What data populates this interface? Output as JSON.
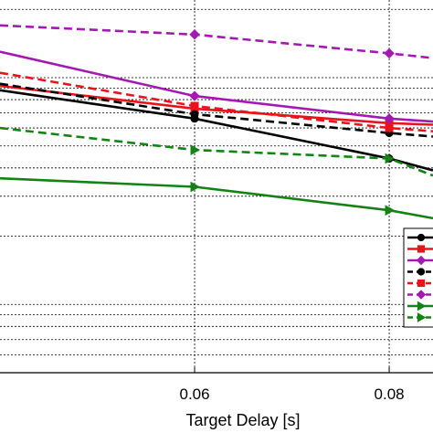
{
  "chart_data": {
    "type": "line",
    "xlabel": "Target Delay [s]",
    "ylabel": "",
    "title": "",
    "x_ticks": [
      0.06,
      0.08
    ],
    "xlim": [
      0.04,
      0.0845
    ],
    "y_scale": "log",
    "ylim": [
      0.05,
      2.2
    ],
    "grid": "major-and-minor",
    "legend_placement": "lower-right",
    "series": [
      {
        "color": "#000000",
        "dash": "solid",
        "marker": "circle",
        "x": [
          0.04,
          0.06,
          0.08,
          0.0845
        ],
        "y": [
          0.88,
          0.66,
          0.44,
          0.39
        ]
      },
      {
        "color": "#e8141c",
        "dash": "solid",
        "marker": "square",
        "x": [
          0.04,
          0.06,
          0.08,
          0.0845
        ],
        "y": [
          0.92,
          0.73,
          0.63,
          0.62
        ]
      },
      {
        "color": "#a21aaf",
        "dash": "solid",
        "marker": "diamond",
        "x": [
          0.04,
          0.06,
          0.08,
          0.0845
        ],
        "y": [
          1.3,
          0.83,
          0.66,
          0.64
        ]
      },
      {
        "color": "#000000",
        "dash": "dashed",
        "marker": "circle",
        "x": [
          0.04,
          0.06,
          0.08,
          0.0845
        ],
        "y": [
          0.94,
          0.69,
          0.57,
          0.55
        ]
      },
      {
        "color": "#e8141c",
        "dash": "dashed",
        "marker": "square",
        "x": [
          0.04,
          0.06,
          0.08,
          0.0845
        ],
        "y": [
          1.05,
          0.75,
          0.6,
          0.58
        ]
      },
      {
        "color": "#a21aaf",
        "dash": "dashed",
        "marker": "diamond",
        "x": [
          0.04,
          0.06,
          0.08,
          0.0845
        ],
        "y": [
          1.7,
          1.55,
          1.28,
          1.22
        ]
      },
      {
        "color": "#148214",
        "dash": "solid",
        "marker": "triangle",
        "x": [
          0.04,
          0.06,
          0.08,
          0.0845
        ],
        "y": [
          0.36,
          0.33,
          0.26,
          0.24
        ]
      },
      {
        "color": "#148214",
        "dash": "dashed",
        "marker": "triangle",
        "x": [
          0.04,
          0.06,
          0.08,
          0.0845
        ],
        "y": [
          0.6,
          0.48,
          0.44,
          0.37
        ]
      }
    ]
  }
}
